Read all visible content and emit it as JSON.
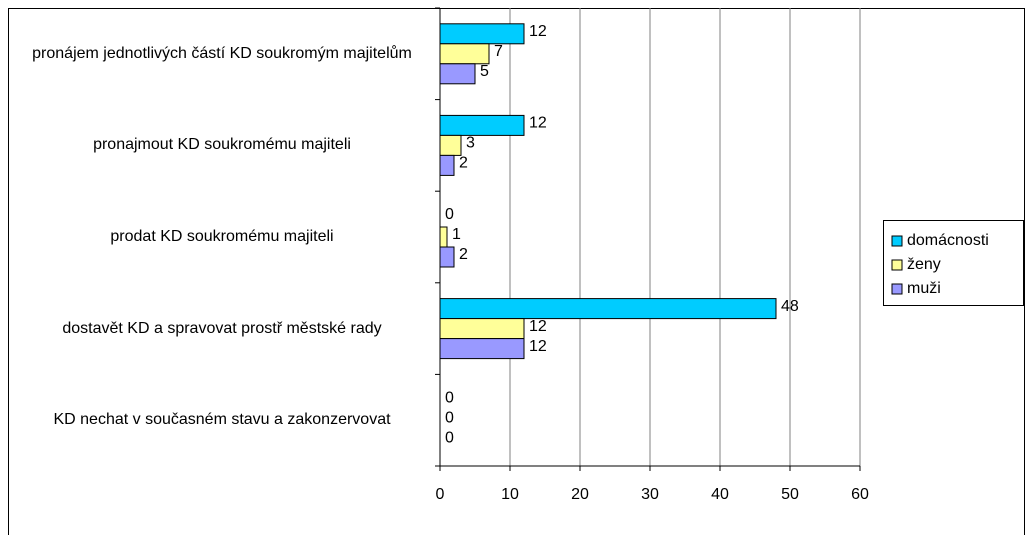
{
  "chart_data": {
    "type": "barh",
    "categories": [
      "pronájem jednotlivých částí KD soukromým majitelům",
      "pronajmout KD soukromému majiteli",
      "prodat KD soukromému majiteli",
      "dostavět KD a spravovat prostř městské rady",
      "KD nechat v současném stavu a zakonzervovat"
    ],
    "series": [
      {
        "name": "domácnosti",
        "color": "#00ccff",
        "values": [
          12,
          12,
          0,
          48,
          0
        ]
      },
      {
        "name": "ženy",
        "color": "#ffff99",
        "values": [
          7,
          3,
          1,
          12,
          0
        ]
      },
      {
        "name": "muži",
        "color": "#9999ff",
        "values": [
          5,
          2,
          2,
          12,
          0
        ]
      }
    ],
    "xlim": [
      0,
      60
    ],
    "xticks": [
      0,
      10,
      20,
      30,
      40,
      50,
      60
    ],
    "grid": true,
    "legend": "right"
  }
}
